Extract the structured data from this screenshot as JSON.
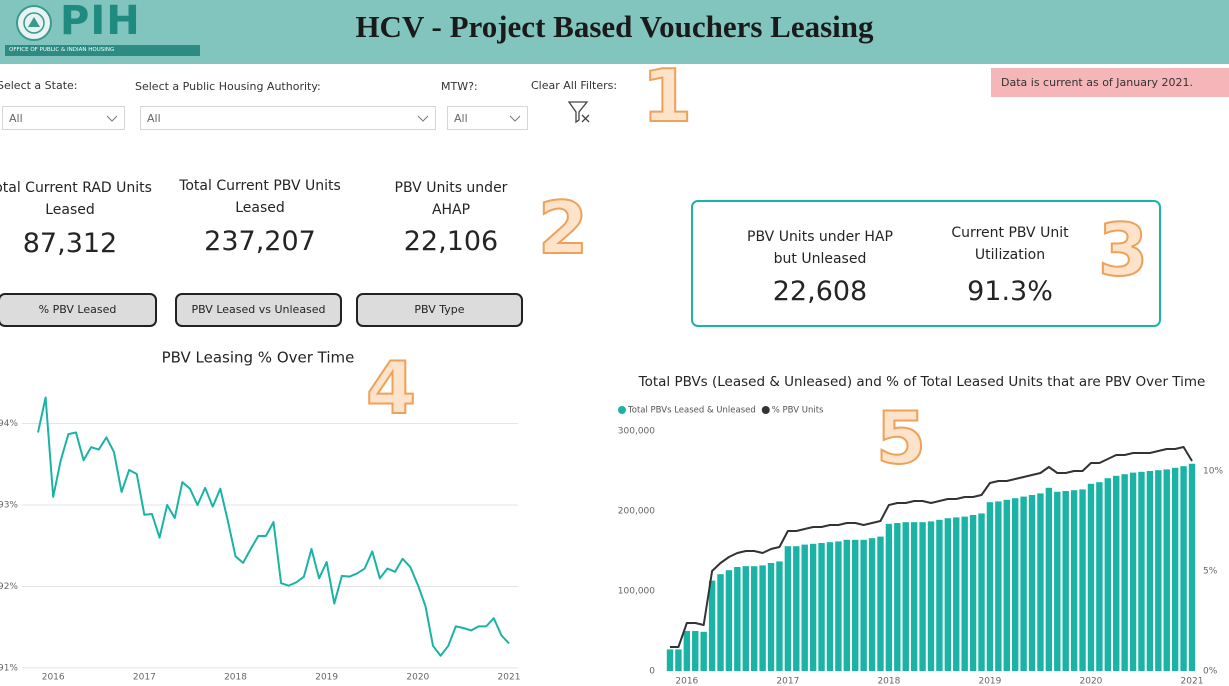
{
  "header": {
    "logo": "PIH",
    "logo_subtitle": "OFFICE OF PUBLIC & INDIAN HOUSING",
    "title": "HCV - Project Based Vouchers Leasing"
  },
  "filters": [
    {
      "label": "Select a State:",
      "value": "All"
    },
    {
      "label": "Select a Public Housing Authority:",
      "value": "All"
    },
    {
      "label": "MTW?:",
      "value": "All"
    }
  ],
  "clear_filters": "Clear All Filters:",
  "notice": "Data is current as of January 2021.",
  "kpis": [
    {
      "label": "Total Current RAD Units Leased",
      "value": "87,312"
    },
    {
      "label": "Total Current PBV Units Leased",
      "value": "237,207"
    },
    {
      "label": "PBV Units under AHAP",
      "value": "22,106"
    }
  ],
  "buttons": [
    "% PBV Leased",
    "PBV Leased vs Unleased",
    "PBV Type"
  ],
  "card": [
    {
      "label": "PBV Units under HAP but Unleased",
      "value": "22,608"
    },
    {
      "label": "Current PBV Unit Utilization",
      "value": "91.3%"
    }
  ],
  "annotations": [
    "1",
    "2",
    "3",
    "4",
    "5"
  ],
  "chart_data": [
    {
      "type": "line",
      "title": "PBV Leasing % Over Time",
      "color": "#1ab3a6",
      "grid": true,
      "categories": [
        null,
        null,
        "2016",
        null,
        null,
        null,
        null,
        null,
        null,
        null,
        null,
        null,
        null,
        null,
        "2017",
        null,
        null,
        null,
        null,
        null,
        null,
        null,
        null,
        null,
        null,
        null,
        "2018",
        null,
        null,
        null,
        null,
        null,
        null,
        null,
        null,
        null,
        null,
        null,
        "2019",
        null,
        null,
        null,
        null,
        null,
        null,
        null,
        null,
        null,
        null,
        null,
        "2020",
        null,
        null,
        null,
        null,
        null,
        null,
        null,
        null,
        null,
        null,
        null,
        "2021"
      ],
      "values": [
        93.89,
        94.32,
        93.1,
        93.55,
        93.87,
        93.89,
        93.55,
        93.71,
        93.68,
        93.83,
        93.65,
        93.16,
        93.43,
        93.38,
        92.88,
        92.89,
        92.6,
        93.0,
        92.84,
        93.28,
        93.2,
        93.0,
        93.21,
        92.98,
        93.2,
        92.8,
        92.37,
        92.29,
        92.46,
        92.62,
        92.62,
        92.79,
        92.04,
        92.01,
        92.05,
        92.12,
        92.46,
        92.1,
        92.3,
        91.79,
        92.13,
        92.12,
        92.16,
        92.22,
        92.43,
        92.1,
        92.22,
        92.18,
        92.34,
        92.24,
        92.02,
        91.76,
        91.27,
        91.15,
        91.27,
        91.51,
        91.49,
        91.46,
        91.51,
        91.51,
        91.61,
        91.4,
        91.3
      ],
      "ylim": [
        90.95,
        94.35
      ],
      "yticks": [
        {
          "value": 91,
          "label": "91%"
        },
        {
          "value": 92,
          "label": "92%"
        },
        {
          "value": 93,
          "label": "93%"
        },
        {
          "value": 94,
          "label": "94%"
        }
      ]
    },
    {
      "type": "bar",
      "title": "Total PBVs (Leased & Unleased) and % of Total Leased Units that are PBV Over Time",
      "grid": false,
      "legend": "top-left",
      "categories": [
        null,
        null,
        "2016",
        null,
        null,
        null,
        null,
        null,
        null,
        null,
        null,
        null,
        null,
        null,
        "2017",
        null,
        null,
        null,
        null,
        null,
        null,
        null,
        null,
        null,
        null,
        null,
        "2018",
        null,
        null,
        null,
        null,
        null,
        null,
        null,
        null,
        null,
        null,
        null,
        "2019",
        null,
        null,
        null,
        null,
        null,
        null,
        null,
        null,
        null,
        null,
        null,
        "2020",
        null,
        null,
        null,
        null,
        null,
        null,
        null,
        null,
        null,
        null,
        null,
        "2021"
      ],
      "series": [
        {
          "name": "Total PBVs Leased & Unleased",
          "color": "#1ab3a6",
          "values": [
            27000,
            27000,
            50000,
            50000,
            49000,
            113000,
            121000,
            126000,
            130000,
            131000,
            131000,
            132000,
            135000,
            137000,
            156000,
            156000,
            158000,
            159000,
            160000,
            161000,
            162000,
            164000,
            164000,
            164000,
            166000,
            168000,
            184000,
            185000,
            186000,
            186000,
            186000,
            187000,
            189000,
            191000,
            192000,
            193000,
            195000,
            197000,
            211000,
            212000,
            214000,
            216000,
            218000,
            220000,
            222000,
            229000,
            224000,
            225000,
            226000,
            227000,
            234000,
            236000,
            241000,
            244000,
            246000,
            248000,
            249000,
            250000,
            251000,
            252000,
            254000,
            256000,
            259000
          ]
        },
        {
          "name": "% PBV Units",
          "color": "#333333",
          "type": "line",
          "axis": "y2",
          "values": [
            1.2,
            1.2,
            2.4,
            2.4,
            2.3,
            5.0,
            5.4,
            5.7,
            5.9,
            6.0,
            6.0,
            5.9,
            6.1,
            6.2,
            7.0,
            7.0,
            7.1,
            7.2,
            7.2,
            7.3,
            7.3,
            7.4,
            7.4,
            7.3,
            7.4,
            7.5,
            8.3,
            8.4,
            8.4,
            8.5,
            8.5,
            8.4,
            8.5,
            8.6,
            8.6,
            8.7,
            8.7,
            8.8,
            9.4,
            9.5,
            9.5,
            9.6,
            9.7,
            9.8,
            9.9,
            10.2,
            9.9,
            9.9,
            10.0,
            10.0,
            10.4,
            10.4,
            10.6,
            10.8,
            10.8,
            10.9,
            10.9,
            10.9,
            11.0,
            11.1,
            11.1,
            11.2,
            10.5
          ]
        }
      ],
      "ylim": [
        0,
        310000
      ],
      "yticks": [
        0,
        {
          "value": 100000,
          "label": "100,000"
        },
        {
          "value": 200000,
          "label": "200,000"
        },
        {
          "value": 300000,
          "label": "300,000"
        }
      ],
      "y2lim": [
        0,
        12.4
      ],
      "y2ticks": [
        {
          "value": 0,
          "label": "0%"
        },
        {
          "value": 5,
          "label": "5%"
        },
        {
          "value": 10,
          "label": "10%"
        }
      ]
    }
  ]
}
